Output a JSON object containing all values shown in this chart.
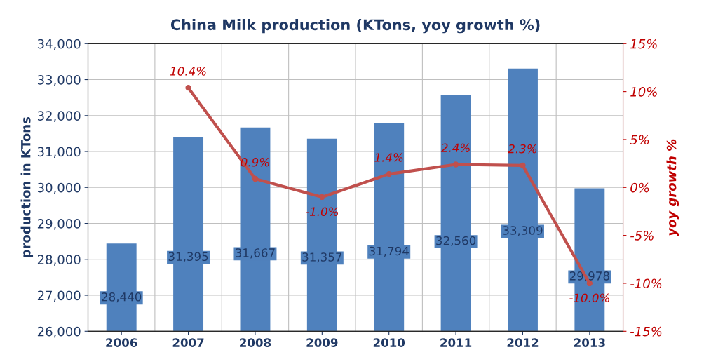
{
  "chart_data": {
    "type": "bar",
    "title": "China Milk production (KTons, yoy growth %)",
    "ylabel": "production in KTons",
    "y2label": "yoy growth %",
    "categories": [
      "2006",
      "2007",
      "2008",
      "2009",
      "2010",
      "2011",
      "2012",
      "2013"
    ],
    "series": [
      {
        "type": "bar",
        "color": "#4f81bd",
        "values": [
          28440,
          31395,
          31667,
          31357,
          31794,
          32560,
          33309,
          29978
        ],
        "value_labels": [
          "28,440",
          "31,395",
          "31,667",
          "31,357",
          "31,794",
          "32,560",
          "33,309",
          "29,978"
        ]
      },
      {
        "type": "line",
        "axis": "y2",
        "color": "#c0504d",
        "marker": "circle",
        "values": [
          null,
          10.4,
          0.9,
          -1.0,
          1.4,
          2.4,
          2.3,
          -10.0
        ],
        "value_labels": [
          null,
          "10.4%",
          "0.9%",
          "-1.0%",
          "1.4%",
          "2.4%",
          "2.3%",
          "-10.0%"
        ]
      }
    ],
    "ylim": [
      26000,
      34000
    ],
    "yticks": [
      {
        "value": 26000,
        "label": "26,000"
      },
      {
        "value": 27000,
        "label": "27,000"
      },
      {
        "value": 28000,
        "label": "28,000"
      },
      {
        "value": 29000,
        "label": "29,000"
      },
      {
        "value": 30000,
        "label": "30,000"
      },
      {
        "value": 31000,
        "label": "31,000"
      },
      {
        "value": 32000,
        "label": "32,000"
      },
      {
        "value": 33000,
        "label": "33,000"
      },
      {
        "value": 34000,
        "label": "34,000"
      }
    ],
    "y2lim": [
      -15,
      15
    ],
    "y2ticks": [
      {
        "value": -15,
        "label": "-15%"
      },
      {
        "value": -10,
        "label": "-10%"
      },
      {
        "value": -5,
        "label": "-5%"
      },
      {
        "value": 0,
        "label": "0%"
      },
      {
        "value": 5,
        "label": "5%"
      },
      {
        "value": 10,
        "label": "10%"
      },
      {
        "value": 15,
        "label": "15%"
      }
    ],
    "grid": "y"
  }
}
